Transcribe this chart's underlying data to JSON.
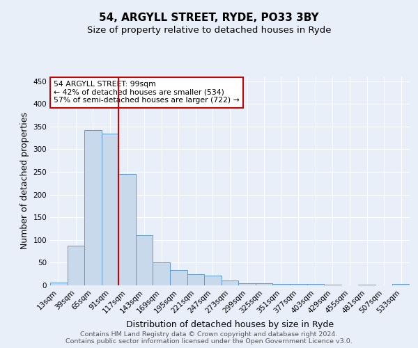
{
  "title": "54, ARGYLL STREET, RYDE, PO33 3BY",
  "subtitle": "Size of property relative to detached houses in Ryde",
  "xlabel": "Distribution of detached houses by size in Ryde",
  "ylabel": "Number of detached properties",
  "footer_line1": "Contains HM Land Registry data © Crown copyright and database right 2024.",
  "footer_line2": "Contains public sector information licensed under the Open Government Licence v3.0.",
  "categories": [
    "13sqm",
    "39sqm",
    "65sqm",
    "91sqm",
    "117sqm",
    "143sqm",
    "169sqm",
    "195sqm",
    "221sqm",
    "247sqm",
    "273sqm",
    "299sqm",
    "325sqm",
    "351sqm",
    "377sqm",
    "403sqm",
    "429sqm",
    "455sqm",
    "481sqm",
    "507sqm",
    "533sqm"
  ],
  "values": [
    6,
    88,
    342,
    335,
    246,
    110,
    50,
    34,
    25,
    22,
    10,
    5,
    4,
    3,
    3,
    3,
    1,
    0,
    1,
    0,
    3
  ],
  "bar_color": "#c9d9ec",
  "bar_edge_color": "#5b9bd5",
  "vline_x": 3.5,
  "vline_color": "#cc0000",
  "annotation_title": "54 ARGYLL STREET: 99sqm",
  "annotation_line1": "← 42% of detached houses are smaller (534)",
  "annotation_line2": "57% of semi-detached houses are larger (722) →",
  "annotation_box_color": "#ffffff",
  "annotation_box_edge_color": "#cc0000",
  "ylim": [
    0,
    460
  ],
  "yticks": [
    0,
    50,
    100,
    150,
    200,
    250,
    300,
    350,
    400,
    450
  ],
  "bg_color": "#e8eff8",
  "grid_color": "#ffffff",
  "title_fontsize": 11,
  "subtitle_fontsize": 9.5,
  "axis_label_fontsize": 9,
  "tick_fontsize": 7.5,
  "footer_fontsize": 6.8
}
